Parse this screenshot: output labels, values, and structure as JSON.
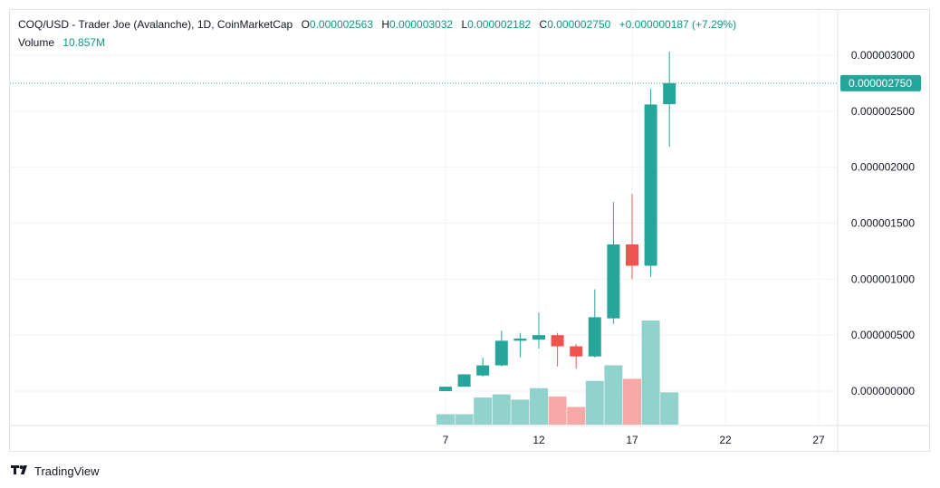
{
  "legend": {
    "title": "COQ/USD - Trader Joe (Avalanche), 1D, CoinMarketCap",
    "o_label": "O",
    "o_value": "0.000002563",
    "h_label": "H",
    "h_value": "0.000003032",
    "l_label": "L",
    "l_value": "0.000002182",
    "c_label": "C",
    "c_value": "0.000002750",
    "change": "+0.000000187 (+7.29%)",
    "volume_label": "Volume",
    "volume_value": "10.857M"
  },
  "branding": {
    "name": "TradingView",
    "icon": "tradingview-logo-icon"
  },
  "colors": {
    "up": "#26a69a",
    "down": "#ef5350",
    "vol_up": "#92d2cc",
    "vol_down": "#f7a9a7",
    "grid": "#f0f3fa"
  },
  "chart_data": {
    "type": "candlestick",
    "title": "COQ/USD - Trader Joe (Avalanche), 1D, CoinMarketCap",
    "x_ticks": [
      "7",
      "12",
      "17",
      "22",
      "27"
    ],
    "y_ticks": [
      "0.000000000",
      "0.000000500",
      "0.000001000",
      "0.000001500",
      "0.000002000",
      "0.000002500",
      "0.000003000"
    ],
    "ylim": [
      -3e-07,
      3.1e-06
    ],
    "last_price": "0.000002750",
    "grid": true,
    "candles": [
      {
        "day": 7,
        "open": 0.0,
        "high": 4e-08,
        "low": 0.0,
        "close": 4e-08
      },
      {
        "day": 8,
        "open": 4e-08,
        "high": 1.5e-07,
        "low": 4e-08,
        "close": 1.5e-07
      },
      {
        "day": 9,
        "open": 1.4e-07,
        "high": 3e-07,
        "low": 1.3e-07,
        "close": 2.3e-07
      },
      {
        "day": 10,
        "open": 2.3e-07,
        "high": 5.4e-07,
        "low": 2.2e-07,
        "close": 4.5e-07
      },
      {
        "day": 11,
        "open": 4.5e-07,
        "high": 5.2e-07,
        "low": 3e-07,
        "close": 4.7e-07
      },
      {
        "day": 12,
        "open": 4.6e-07,
        "high": 7e-07,
        "low": 3.8e-07,
        "close": 5e-07
      },
      {
        "day": 13,
        "open": 5e-07,
        "high": 5.2e-07,
        "low": 2.2e-07,
        "close": 4e-07
      },
      {
        "day": 14,
        "open": 4e-07,
        "high": 4.2e-07,
        "low": 2e-07,
        "close": 3.1e-07
      },
      {
        "day": 15,
        "open": 3.1e-07,
        "high": 9.1e-07,
        "low": 3e-07,
        "close": 6.6e-07
      },
      {
        "day": 16,
        "open": 6.5e-07,
        "high": 1.69e-06,
        "low": 6e-07,
        "close": 1.31e-06
      },
      {
        "day": 17,
        "open": 1.31e-06,
        "high": 1.76e-06,
        "low": 1e-06,
        "close": 1.12e-06
      },
      {
        "day": 18,
        "open": 1.12e-06,
        "high": 2.7e-06,
        "low": 1.02e-06,
        "close": 2.56e-06
      },
      {
        "day": 19,
        "open": 2.563e-06,
        "high": 3.032e-06,
        "low": 2.182e-06,
        "close": 2.75e-06
      }
    ],
    "volume": {
      "name": "Volume",
      "values_relative": [
        0.1,
        0.1,
        0.26,
        0.29,
        0.24,
        0.35,
        0.27,
        0.17,
        0.42,
        0.57,
        0.44,
        1.0,
        0.31
      ],
      "directions": [
        "up",
        "up",
        "up",
        "up",
        "up",
        "up",
        "down",
        "down",
        "up",
        "up",
        "down",
        "up",
        "up"
      ]
    }
  }
}
